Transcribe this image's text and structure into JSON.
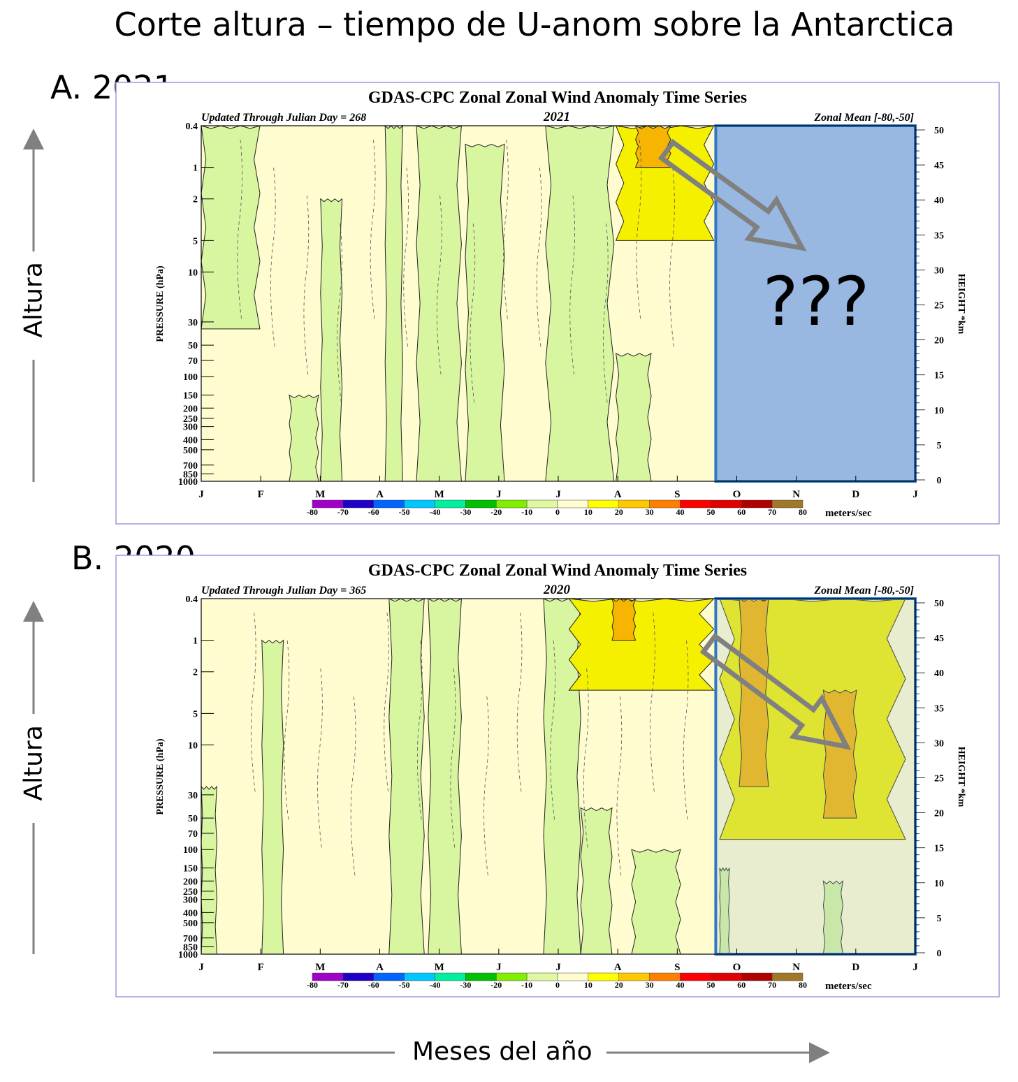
{
  "slide": {
    "title": "Corte altura – tiempo de U-anom sobre la Antarctica",
    "y_caption": "Altura",
    "x_caption": "Meses del año",
    "unknown_mark": "???"
  },
  "colors": {
    "accent_box_border": "#2f78c4",
    "unknown_box_fill": "#98b8e2",
    "arrow": "#808080",
    "background": "#fffcd0"
  },
  "chart_data": [
    {
      "panel_label": "A. 2021",
      "type": "heatmap",
      "subtype": "filled contour (time-height cross section)",
      "title": "GDAS-CPC Zonal Zonal Wind Anomaly Time Series",
      "subtitle_left": "Updated Through Julian Day = 268",
      "subtitle_center": "2021",
      "subtitle_right": "Zonal Mean [-80,-50]",
      "ylabel": "PRESSURE (hPa)",
      "ylabel_right": "HEIGHT *km",
      "x_ticks": [
        "J",
        "F",
        "M",
        "A",
        "M",
        "J",
        "J",
        "A",
        "S",
        "O",
        "N",
        "D",
        "J"
      ],
      "xlim_day": [
        0,
        365
      ],
      "y_scale": "log",
      "y_ticks": [
        "0.4",
        "1",
        "2",
        "5",
        "10",
        "30",
        "50",
        "70",
        "100",
        "150",
        "200",
        "250",
        "300",
        "400",
        "500",
        "700",
        "850",
        "1000"
      ],
      "ylim": [
        1000,
        0.4
      ],
      "y2_ticks": [
        "0",
        "5",
        "10",
        "15",
        "20",
        "25",
        "30",
        "35",
        "40",
        "45",
        "50"
      ],
      "colorbar": {
        "unit": "meters/sec",
        "ticks": [
          "-80",
          "-70",
          "-60",
          "-50",
          "-40",
          "-30",
          "-20",
          "-10",
          "0",
          "10",
          "20",
          "30",
          "40",
          "50",
          "60",
          "70",
          "80"
        ],
        "colors": [
          "#a000c8",
          "#1e00c8",
          "#0064ff",
          "#00c8ff",
          "#00f0a0",
          "#00c000",
          "#80f000",
          "#e0f8a0",
          "#fffcd0",
          "#ffff00",
          "#ffc800",
          "#ff8000",
          "#ff0000",
          "#e00000",
          "#b00000",
          "#a07828"
        ]
      },
      "regions": [
        {
          "day": [
            0,
            30
          ],
          "p": [
            0.4,
            35
          ],
          "bin": "-10-0"
        },
        {
          "day": [
            45,
            60
          ],
          "p": [
            150,
            1000
          ],
          "bin": "-10-0"
        },
        {
          "day": [
            61,
            72
          ],
          "p": [
            2,
            1000
          ],
          "bin": "-10-0"
        },
        {
          "day": [
            94,
            103
          ],
          "p": [
            0.4,
            1000
          ],
          "bin": "-10-0"
        },
        {
          "day": [
            110,
            133
          ],
          "p": [
            0.4,
            1000
          ],
          "bin": "-10-0"
        },
        {
          "day": [
            135,
            155
          ],
          "p": [
            0.6,
            1000
          ],
          "bin": "-10-0"
        },
        {
          "day": [
            176,
            211
          ],
          "p": [
            0.4,
            1000
          ],
          "bin": "-10-0"
        },
        {
          "day": [
            212,
            230
          ],
          "p": [
            60,
            1000
          ],
          "bin": "-10-0"
        },
        {
          "day": [
            212,
            262
          ],
          "p": [
            0.4,
            5
          ],
          "bin": "10-20"
        },
        {
          "day": [
            222,
            240
          ],
          "p": [
            0.4,
            1
          ],
          "bin": "20-30"
        }
      ],
      "unknown_period_day": [
        263,
        365
      ]
    },
    {
      "panel_label": "B. 2020",
      "type": "heatmap",
      "subtype": "filled contour (time-height cross section)",
      "title": "GDAS-CPC Zonal Zonal Wind Anomaly Time Series",
      "subtitle_left": "Updated Through Julian Day = 365",
      "subtitle_center": "2020",
      "subtitle_right": "Zonal Mean [-80,-50]",
      "ylabel": "PRESSURE (hPa)",
      "ylabel_right": "HEIGHT *km",
      "x_ticks": [
        "J",
        "F",
        "M",
        "A",
        "M",
        "J",
        "J",
        "A",
        "S",
        "O",
        "N",
        "D",
        "J"
      ],
      "xlim_day": [
        0,
        365
      ],
      "y_scale": "log",
      "y_ticks": [
        "0.4",
        "1",
        "2",
        "5",
        "10",
        "30",
        "50",
        "70",
        "100",
        "150",
        "200",
        "250",
        "300",
        "400",
        "500",
        "700",
        "850",
        "1000"
      ],
      "ylim": [
        1000,
        0.4
      ],
      "y2_ticks": [
        "0",
        "5",
        "10",
        "15",
        "20",
        "25",
        "30",
        "35",
        "40",
        "45",
        "50"
      ],
      "colorbar": {
        "unit": "meters/sec",
        "ticks": [
          "-80",
          "-70",
          "-60",
          "-50",
          "-40",
          "-30",
          "-20",
          "-10",
          "0",
          "10",
          "20",
          "30",
          "40",
          "50",
          "60",
          "70",
          "80"
        ],
        "colors": [
          "#a000c8",
          "#1e00c8",
          "#0064ff",
          "#00c8ff",
          "#00f0a0",
          "#00c000",
          "#80f000",
          "#e0f8a0",
          "#fffcd0",
          "#ffff00",
          "#ffc800",
          "#ff8000",
          "#ff0000",
          "#e00000",
          "#b00000",
          "#a07828"
        ]
      },
      "regions": [
        {
          "day": [
            0,
            8
          ],
          "p": [
            25,
            1000
          ],
          "bin": "-10-0"
        },
        {
          "day": [
            31,
            42
          ],
          "p": [
            1,
            1000
          ],
          "bin": "-10-0"
        },
        {
          "day": [
            96,
            114
          ],
          "p": [
            0.4,
            1000
          ],
          "bin": "-10-0"
        },
        {
          "day": [
            116,
            133
          ],
          "p": [
            0.4,
            1000
          ],
          "bin": "-10-0"
        },
        {
          "day": [
            175,
            194
          ],
          "p": [
            0.4,
            1000
          ],
          "bin": "-10-0"
        },
        {
          "day": [
            194,
            210
          ],
          "p": [
            40,
            1000
          ],
          "bin": "-10-0"
        },
        {
          "day": [
            220,
            245
          ],
          "p": [
            100,
            1000
          ],
          "bin": "-10-0"
        },
        {
          "day": [
            188,
            262
          ],
          "p": [
            0.4,
            3
          ],
          "bin": "10-20"
        },
        {
          "day": [
            210,
            222
          ],
          "p": [
            0.4,
            1
          ],
          "bin": "20-30"
        },
        {
          "day": [
            265,
            360
          ],
          "p": [
            0.4,
            80
          ],
          "bin": "10-20"
        },
        {
          "day": [
            275,
            290
          ],
          "p": [
            0.4,
            25
          ],
          "bin": "20-30"
        },
        {
          "day": [
            318,
            335
          ],
          "p": [
            3,
            50
          ],
          "bin": "20-30"
        },
        {
          "day": [
            265,
            270
          ],
          "p": [
            150,
            1000
          ],
          "bin": "-10-0"
        },
        {
          "day": [
            318,
            328
          ],
          "p": [
            200,
            1000
          ],
          "bin": "-10-0"
        }
      ],
      "highlight_period_day": [
        263,
        365
      ]
    }
  ]
}
